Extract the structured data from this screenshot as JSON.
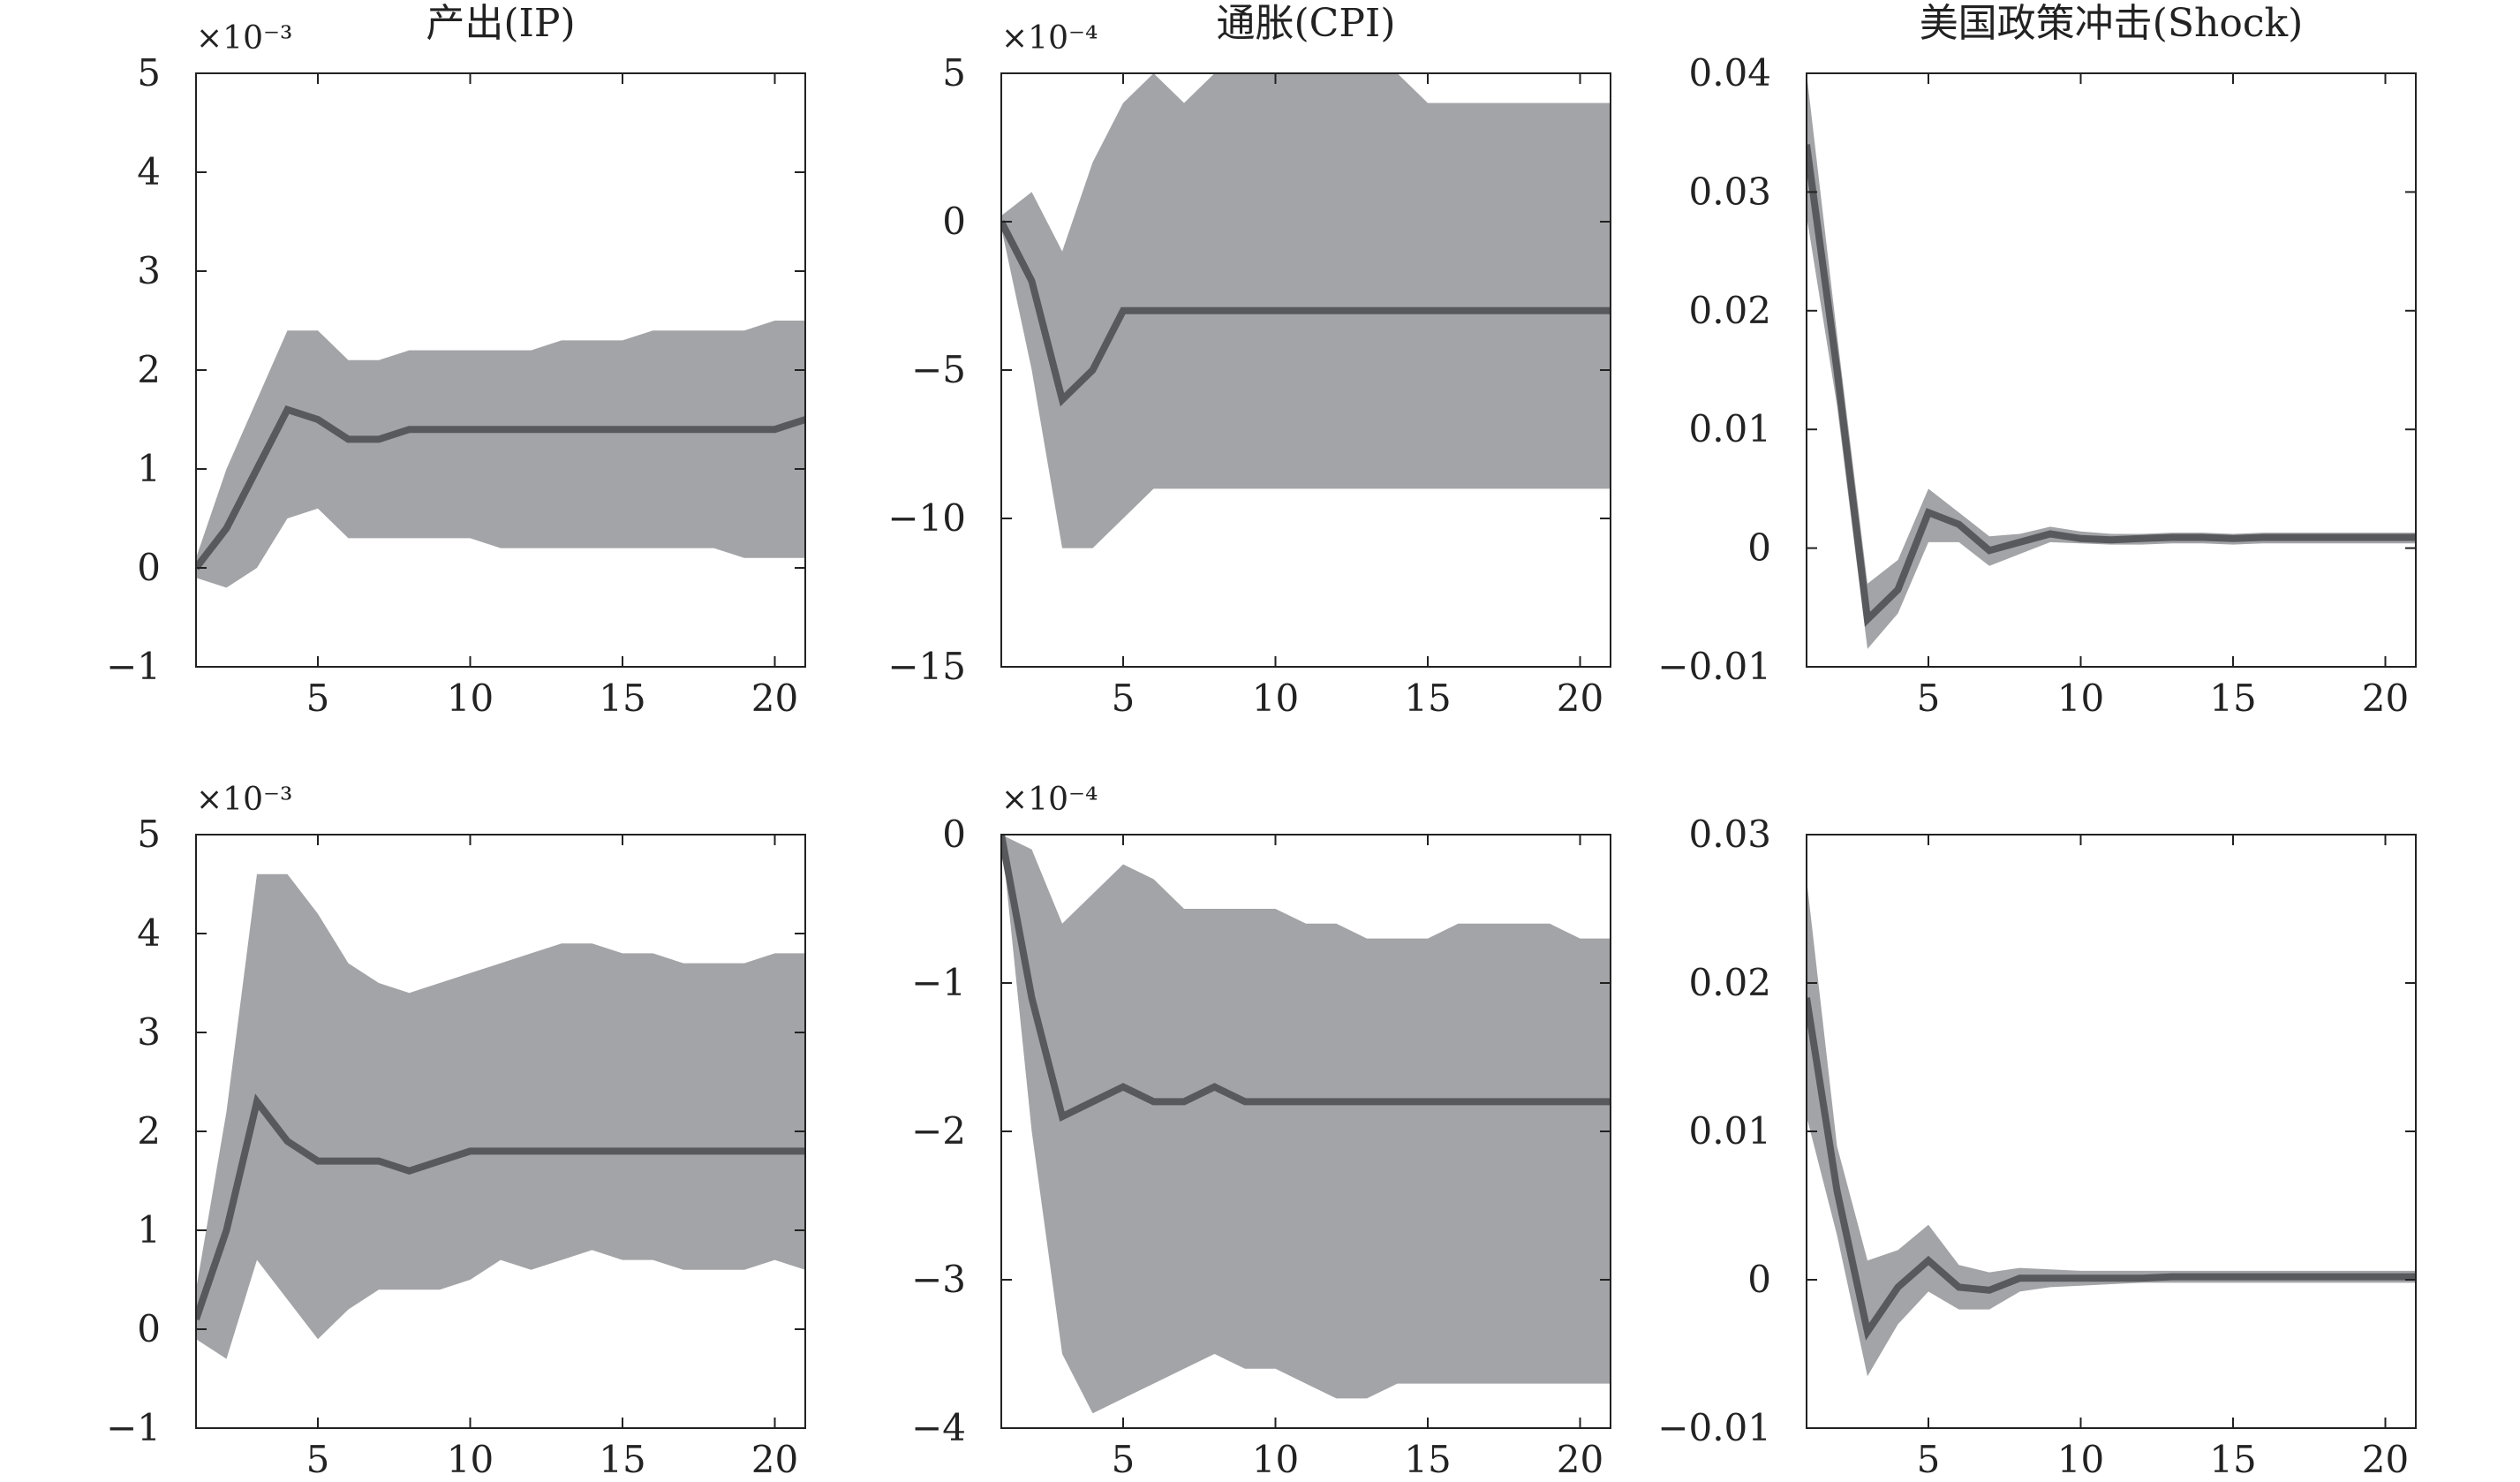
{
  "colors": {
    "band": "#a3a4a7",
    "line": "#58595c",
    "axis": "#222222",
    "background": "#ffffff"
  },
  "chart_data": [
    {
      "type": "area",
      "panel": "row1-col1",
      "title": "产出(IP)",
      "multiplier": "×10⁻³",
      "x": [
        1,
        2,
        3,
        4,
        5,
        6,
        7,
        8,
        9,
        10,
        11,
        12,
        13,
        14,
        15,
        16,
        17,
        18,
        19,
        20,
        21
      ],
      "xlim": [
        1,
        21
      ],
      "ylim": [
        -1,
        5
      ],
      "xticks": [
        5,
        10,
        15,
        20
      ],
      "yticks": [
        -1,
        0,
        1,
        2,
        3,
        4,
        5
      ],
      "xtick_labels": [
        "5",
        "10",
        "15",
        "20"
      ],
      "ytick_labels": [
        "−1",
        "0",
        "1",
        "2",
        "3",
        "4",
        "5"
      ],
      "series": [
        {
          "role": "response",
          "values": [
            0.0,
            0.4,
            1.0,
            1.6,
            1.5,
            1.3,
            1.3,
            1.4,
            1.4,
            1.4,
            1.4,
            1.4,
            1.4,
            1.4,
            1.4,
            1.4,
            1.4,
            1.4,
            1.4,
            1.4,
            1.5
          ]
        },
        {
          "role": "upper",
          "values": [
            0.1,
            1.0,
            1.7,
            2.4,
            2.4,
            2.1,
            2.1,
            2.2,
            2.2,
            2.2,
            2.2,
            2.2,
            2.3,
            2.3,
            2.3,
            2.4,
            2.4,
            2.4,
            2.4,
            2.5,
            2.5
          ]
        },
        {
          "role": "lower",
          "values": [
            -0.1,
            -0.2,
            0.0,
            0.5,
            0.6,
            0.3,
            0.3,
            0.3,
            0.3,
            0.3,
            0.2,
            0.2,
            0.2,
            0.2,
            0.2,
            0.2,
            0.2,
            0.2,
            0.1,
            0.1,
            0.1
          ]
        }
      ]
    },
    {
      "type": "area",
      "panel": "row1-col2",
      "title": "通胀(CPI)",
      "multiplier": "×10⁻⁴",
      "x": [
        1,
        2,
        3,
        4,
        5,
        6,
        7,
        8,
        9,
        10,
        11,
        12,
        13,
        14,
        15,
        16,
        17,
        18,
        19,
        20,
        21
      ],
      "xlim": [
        1,
        21
      ],
      "ylim": [
        -15,
        5
      ],
      "xticks": [
        5,
        10,
        15,
        20
      ],
      "yticks": [
        -15,
        -10,
        -5,
        0,
        5
      ],
      "xtick_labels": [
        "5",
        "10",
        "15",
        "20"
      ],
      "ytick_labels": [
        "−15",
        "−10",
        "−5",
        "0",
        "5"
      ],
      "series": [
        {
          "role": "response",
          "values": [
            0,
            -2,
            -6,
            -5,
            -3,
            -3,
            -3,
            -3,
            -3,
            -3,
            -3,
            -3,
            -3,
            -3,
            -3,
            -3,
            -3,
            -3,
            -3,
            -3,
            -3
          ]
        },
        {
          "role": "upper",
          "values": [
            0.2,
            1,
            -1,
            2,
            4,
            5,
            4,
            5,
            5,
            5,
            5,
            5,
            5,
            5,
            4,
            4,
            4,
            4,
            4,
            4,
            4
          ]
        },
        {
          "role": "lower",
          "values": [
            -0.2,
            -5,
            -11,
            -11,
            -10,
            -9,
            -9,
            -9,
            -9,
            -9,
            -9,
            -9,
            -9,
            -9,
            -9,
            -9,
            -9,
            -9,
            -9,
            -9,
            -9
          ]
        }
      ]
    },
    {
      "type": "area",
      "panel": "row1-col3",
      "title": "美国政策冲击(Shock)",
      "multiplier": "",
      "x": [
        1,
        2,
        3,
        4,
        5,
        6,
        7,
        8,
        9,
        10,
        11,
        12,
        13,
        14,
        15,
        16,
        17,
        18,
        19,
        20,
        21
      ],
      "xlim": [
        1,
        21
      ],
      "ylim": [
        -0.01,
        0.04
      ],
      "xticks": [
        5,
        10,
        15,
        20
      ],
      "yticks": [
        -0.01,
        0,
        0.01,
        0.02,
        0.03,
        0.04
      ],
      "xtick_labels": [
        "5",
        "10",
        "15",
        "20"
      ],
      "ytick_labels": [
        "−0.01",
        "0",
        "0.01",
        "0.02",
        "0.03",
        "0.04"
      ],
      "series": [
        {
          "role": "response",
          "values": [
            0.034,
            0.015,
            -0.006,
            -0.0035,
            0.003,
            0.002,
            -0.0002,
            0.0005,
            0.0012,
            0.0008,
            0.0007,
            0.0008,
            0.0009,
            0.0009,
            0.0008,
            0.0009,
            0.0009,
            0.0009,
            0.0009,
            0.0009,
            0.0009
          ]
        },
        {
          "role": "upper",
          "values": [
            0.04,
            0.018,
            -0.003,
            -0.001,
            0.005,
            0.003,
            0.001,
            0.0012,
            0.0018,
            0.0014,
            0.0012,
            0.0012,
            0.0013,
            0.0013,
            0.0012,
            0.0013,
            0.0013,
            0.0013,
            0.0013,
            0.0013,
            0.0013
          ]
        },
        {
          "role": "lower",
          "values": [
            0.028,
            0.012,
            -0.0085,
            -0.0055,
            0.0005,
            0.0005,
            -0.0015,
            -0.0005,
            0.0005,
            0.0004,
            0.0003,
            0.0003,
            0.0004,
            0.0004,
            0.0003,
            0.0004,
            0.0004,
            0.0004,
            0.0004,
            0.0004,
            0.0004
          ]
        }
      ]
    },
    {
      "type": "area",
      "panel": "row2-col1",
      "title": "",
      "multiplier": "×10⁻³",
      "x": [
        1,
        2,
        3,
        4,
        5,
        6,
        7,
        8,
        9,
        10,
        11,
        12,
        13,
        14,
        15,
        16,
        17,
        18,
        19,
        20,
        21
      ],
      "xlim": [
        1,
        21
      ],
      "ylim": [
        -1,
        5
      ],
      "xticks": [
        5,
        10,
        15,
        20
      ],
      "yticks": [
        -1,
        0,
        1,
        2,
        3,
        4,
        5
      ],
      "xtick_labels": [
        "5",
        "10",
        "15",
        "20"
      ],
      "ytick_labels": [
        "−1",
        "0",
        "1",
        "2",
        "3",
        "4",
        "5"
      ],
      "series": [
        {
          "role": "response",
          "values": [
            0.1,
            1.0,
            2.3,
            1.9,
            1.7,
            1.7,
            1.7,
            1.6,
            1.7,
            1.8,
            1.8,
            1.8,
            1.8,
            1.8,
            1.8,
            1.8,
            1.8,
            1.8,
            1.8,
            1.8,
            1.8
          ]
        },
        {
          "role": "upper",
          "values": [
            0.4,
            2.2,
            4.6,
            4.6,
            4.2,
            3.7,
            3.5,
            3.4,
            3.5,
            3.6,
            3.7,
            3.8,
            3.9,
            3.9,
            3.8,
            3.8,
            3.7,
            3.7,
            3.7,
            3.8,
            3.8
          ]
        },
        {
          "role": "lower",
          "values": [
            -0.1,
            -0.3,
            0.7,
            0.3,
            -0.1,
            0.2,
            0.4,
            0.4,
            0.4,
            0.5,
            0.7,
            0.6,
            0.7,
            0.8,
            0.7,
            0.7,
            0.6,
            0.6,
            0.6,
            0.7,
            0.6
          ]
        }
      ]
    },
    {
      "type": "area",
      "panel": "row2-col2",
      "title": "",
      "multiplier": "×10⁻⁴",
      "x": [
        1,
        2,
        3,
        4,
        5,
        6,
        7,
        8,
        9,
        10,
        11,
        12,
        13,
        14,
        15,
        16,
        17,
        18,
        19,
        20,
        21
      ],
      "xlim": [
        1,
        21
      ],
      "ylim": [
        -4,
        0
      ],
      "xticks": [
        5,
        10,
        15,
        20
      ],
      "yticks": [
        -4,
        -3,
        -2,
        -1,
        0
      ],
      "xtick_labels": [
        "5",
        "10",
        "15",
        "20"
      ],
      "ytick_labels": [
        "−4",
        "−3",
        "−2",
        "−1",
        "0"
      ],
      "series": [
        {
          "role": "response",
          "values": [
            0,
            -1.1,
            -1.9,
            -1.8,
            -1.7,
            -1.8,
            -1.8,
            -1.7,
            -1.8,
            -1.8,
            -1.8,
            -1.8,
            -1.8,
            -1.8,
            -1.8,
            -1.8,
            -1.8,
            -1.8,
            -1.8,
            -1.8,
            -1.8
          ]
        },
        {
          "role": "upper",
          "values": [
            0,
            -0.1,
            -0.6,
            -0.4,
            -0.2,
            -0.3,
            -0.5,
            -0.5,
            -0.5,
            -0.5,
            -0.6,
            -0.6,
            -0.7,
            -0.7,
            -0.7,
            -0.6,
            -0.6,
            -0.6,
            -0.6,
            -0.7,
            -0.7
          ]
        },
        {
          "role": "lower",
          "values": [
            0,
            -2.0,
            -3.5,
            -3.9,
            -3.8,
            -3.7,
            -3.6,
            -3.5,
            -3.6,
            -3.6,
            -3.7,
            -3.8,
            -3.8,
            -3.7,
            -3.7,
            -3.7,
            -3.7,
            -3.7,
            -3.7,
            -3.7,
            -3.7
          ]
        }
      ]
    },
    {
      "type": "area",
      "panel": "row2-col3",
      "title": "",
      "multiplier": "",
      "x": [
        1,
        2,
        3,
        4,
        5,
        6,
        7,
        8,
        9,
        10,
        11,
        12,
        13,
        14,
        15,
        16,
        17,
        18,
        19,
        20,
        21
      ],
      "xlim": [
        1,
        21
      ],
      "ylim": [
        -0.01,
        0.03
      ],
      "xticks": [
        5,
        10,
        15,
        20
      ],
      "yticks": [
        -0.01,
        0,
        0.01,
        0.02,
        0.03
      ],
      "xtick_labels": [
        "5",
        "10",
        "15",
        "20"
      ],
      "ytick_labels": [
        "−0.01",
        "0",
        "0.01",
        "0.02",
        "0.03"
      ],
      "series": [
        {
          "role": "response",
          "values": [
            0.019,
            0.006,
            -0.0035,
            -0.0005,
            0.0013,
            -0.0005,
            -0.0007,
            0.0001,
            0.0001,
            0.0001,
            0.0001,
            0.0001,
            0.0002,
            0.0002,
            0.0002,
            0.0002,
            0.0002,
            0.0002,
            0.0002,
            0.0002,
            0.0002
          ]
        },
        {
          "role": "upper",
          "values": [
            0.027,
            0.009,
            0.0013,
            0.002,
            0.0037,
            0.001,
            0.0005,
            0.0008,
            0.0007,
            0.0006,
            0.0006,
            0.0006,
            0.0006,
            0.0006,
            0.0006,
            0.0006,
            0.0006,
            0.0006,
            0.0006,
            0.0006,
            0.0006
          ]
        },
        {
          "role": "lower",
          "values": [
            0.011,
            0.003,
            -0.0065,
            -0.003,
            -0.0008,
            -0.002,
            -0.002,
            -0.0008,
            -0.0005,
            -0.0004,
            -0.0003,
            -0.0002,
            -0.0002,
            -0.0002,
            -0.0002,
            -0.0002,
            -0.0002,
            -0.0002,
            -0.0002,
            -0.0002,
            -0.0002
          ]
        }
      ]
    }
  ]
}
